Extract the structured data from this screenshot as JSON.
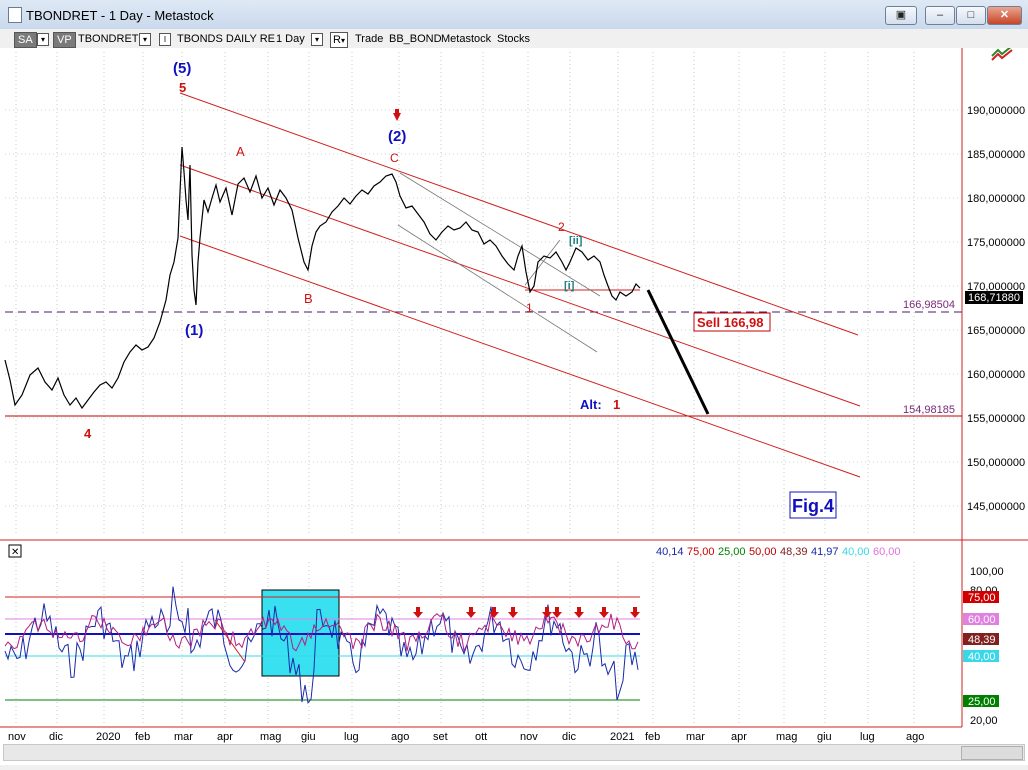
{
  "window": {
    "title": "TBONDRET - 1 Day - Metastock",
    "buttons": {
      "restore": "▣",
      "minimize": "–",
      "maximize": "□",
      "close": "✕"
    }
  },
  "toolbar": {
    "sa": "SA",
    "vp": "VP",
    "symbol": "TBONDRET",
    "dropdown_glyph": "▾",
    "desc_marker": "I",
    "description": "TBONDS DAILY RE",
    "period": "1 Day",
    "r_button": "R",
    "trade": "Trade",
    "source": "BB_BOND",
    "database": "Metastock",
    "category": "Stocks"
  },
  "price_panel": {
    "y_ticks": [
      "190,000000",
      "185,000000",
      "180,000000",
      "175,000000",
      "170,000000",
      "165,000000",
      "160,000000",
      "155,000000",
      "150,000000",
      "145,000000"
    ],
    "last_price_label": "168,71880",
    "level_upper": "166,98504",
    "level_lower": "154,98185",
    "sell_label": "Sell 166,98",
    "fig_label": "Fig.4",
    "alt_label": "Alt:",
    "alt_number": "1",
    "wave_labels": {
      "w5_blue": "(5)",
      "w5_red": "5",
      "w1_blue": "(1)",
      "w2_blue": "(2)",
      "wA": "A",
      "wB": "B",
      "wC": "C",
      "w4": "4",
      "w2_red": "2",
      "w1_red": "1",
      "wii": "[ii]",
      "wi": "[i]"
    }
  },
  "indicator_panel": {
    "toggle_glyph": "✕",
    "legend": [
      {
        "value": "40,14",
        "color": "#1a2aa8"
      },
      {
        "value": "75,00",
        "color": "#d00000"
      },
      {
        "value": "25,00",
        "color": "#008000"
      },
      {
        "value": "50,00",
        "color": "#c00000"
      },
      {
        "value": "48,39",
        "color": "#802020"
      },
      {
        "value": "41,97",
        "color": "#1a2aa8"
      },
      {
        "value": "40,00",
        "color": "#38d8e8"
      },
      {
        "value": "60,00",
        "color": "#e070e0"
      }
    ],
    "y_ticks": [
      "100,00",
      "80,00",
      "20,00"
    ],
    "badges": [
      {
        "text": "75,00",
        "color": "#d00000"
      },
      {
        "text": "60,00",
        "color": "#e080e0"
      },
      {
        "text": "48,39",
        "color": "#802020"
      },
      {
        "text": "40,00",
        "color": "#38d8e8"
      },
      {
        "text": "25,00",
        "color": "#008000"
      }
    ]
  },
  "x_axis": {
    "labels": [
      "nov",
      "dic",
      "2020",
      "feb",
      "mar",
      "apr",
      "mag",
      "giu",
      "lug",
      "ago",
      "set",
      "ott",
      "nov",
      "dic",
      "2021",
      "feb",
      "mar",
      "apr",
      "mag",
      "giu",
      "lug",
      "ago"
    ]
  },
  "colors": {
    "channel": "#d02020",
    "price": "#000000",
    "blue_wave": "#1010c0",
    "red_wave": "#d01010",
    "highlight_box": "#38e0f0"
  }
}
